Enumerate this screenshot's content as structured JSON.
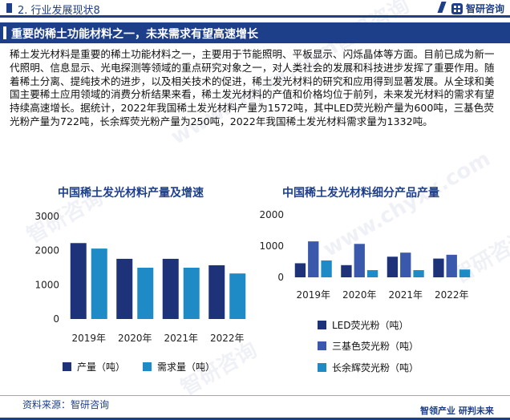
{
  "header": {
    "section_title": "2. 行业发展现状8",
    "brand": "智研咨询",
    "brand_icon": "zhiyan-logo-icon"
  },
  "banner": {
    "title": "重要的稀土功能材料之一，未来需求有望高速增长"
  },
  "intro": "稀土发光材料是重要的稀土功能材料之一，主要用于节能照明、平板显示、闪烁晶体等方面。目前已成为新一代照明、信息显示、光电探测等领域的重点研究对象之一，对人类社会的发展和科技进步发挥了重要作用。随着稀土分离、提纯技术的进步，以及相关技术的促进，稀土发光材料的研究和应用得到显著发展。从全球和美国主要稀土应用领域的消费分析结果来看，稀土发光材料的产值和价格均位于前列，未来发光材料的需求有望持续高速增长。据统计，2022年我国稀土发光材料产量为1572吨，其中LED荧光粉产量为600吨，三基色荧光粉产量为722吨，长余辉荧光粉产量为250吨，2022年我国稀土发光材料需求量为1332吨。",
  "colors": {
    "brand_blue": "#1d3f8a",
    "series_dark": "#1d3278",
    "series_mid": "#3a59ad",
    "series_light": "#1e8bc7"
  },
  "chart_data": [
    {
      "type": "bar",
      "title": "中国稀土发光材料产量及增速",
      "categories": [
        "2019年",
        "2020年",
        "2021年",
        "2022年"
      ],
      "series": [
        {
          "name": "产量（吨）",
          "values": [
            2220,
            1760,
            1760,
            1572
          ],
          "color": "#1d3278"
        },
        {
          "name": "需求量（吨）",
          "values": [
            2060,
            1500,
            1500,
            1332
          ],
          "color": "#1e8bc7"
        }
      ],
      "y_ticks": [
        0,
        1000,
        2000,
        3000
      ],
      "ylim": [
        0,
        3000
      ],
      "grid": false,
      "legend_position": "bottom"
    },
    {
      "type": "bar",
      "title": "中国稀土发光材料细分产品产量",
      "categories": [
        "2019年",
        "2020年",
        "2021年",
        "2022年"
      ],
      "series": [
        {
          "name": "LED荧光粉（吨）",
          "values": [
            450,
            390,
            660,
            600
          ],
          "color": "#1d3278"
        },
        {
          "name": "三基色荧光粉（吨）",
          "values": [
            1150,
            1070,
            790,
            722
          ],
          "color": "#3a59ad"
        },
        {
          "name": "长余辉荧光粉（吨）",
          "values": [
            540,
            230,
            230,
            250
          ],
          "color": "#1e8bc7"
        }
      ],
      "y_ticks": [
        0,
        1000,
        2000
      ],
      "ylim": [
        0,
        2000
      ],
      "grid": false,
      "legend_position": "bottom"
    }
  ],
  "footer": {
    "source": "资料来源：智研咨询",
    "slogan": "智领产业  研判未来"
  },
  "watermark": {
    "brand": "智研咨询",
    "url": "www.chyxx.com"
  }
}
